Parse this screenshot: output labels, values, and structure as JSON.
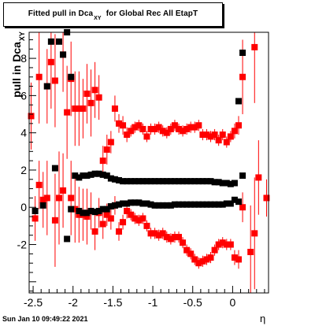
{
  "title": {
    "main": "Fitted pull in Dca",
    "sub": "XY",
    "rest": "for Global Rec All EtapT"
  },
  "ylabel": {
    "main": "pull in Dca",
    "sub": "XY"
  },
  "xlabel": "η",
  "timestamp": "Sun Jan 10 09:49:22 2021",
  "chart_data": {
    "type": "scatter",
    "xlim": [
      -2.55,
      0.45
    ],
    "ylim": [
      -4.6,
      9.4
    ],
    "xticks": [
      -2.5,
      -2,
      -1.5,
      -1,
      -0.5,
      0
    ],
    "yticks": [
      -2,
      0,
      2,
      4,
      6,
      8
    ],
    "grid": false,
    "series": [
      {
        "color": "#000000",
        "points": [
          {
            "x": -2.475,
            "y": -0.2
          },
          {
            "x": -2.375,
            "y": 0.1
          },
          {
            "x": -2.325,
            "y": 6.5
          },
          {
            "x": -2.275,
            "y": 8.9
          },
          {
            "x": -2.225,
            "y": 2.1
          },
          {
            "x": -2.175,
            "y": 8.9
          },
          {
            "x": -2.125,
            "y": 8.2
          },
          {
            "x": -2.075,
            "y": 9.4
          },
          {
            "x": -2.025,
            "y": 7.0
          },
          {
            "x": -2.075,
            "y": -1.7
          },
          {
            "x": -2.025,
            "y": -0.1
          },
          {
            "x": -1.975,
            "y": 1.7
          },
          {
            "x": -1.925,
            "y": 1.6
          },
          {
            "x": -1.875,
            "y": 1.7
          },
          {
            "x": -1.825,
            "y": 1.7
          },
          {
            "x": -1.775,
            "y": 1.75
          },
          {
            "x": -1.725,
            "y": 1.8
          },
          {
            "x": -1.675,
            "y": 1.8
          },
          {
            "x": -1.625,
            "y": 1.75
          },
          {
            "x": -1.575,
            "y": 1.7
          },
          {
            "x": -1.525,
            "y": 1.55
          },
          {
            "x": -1.475,
            "y": 1.5
          },
          {
            "x": -1.425,
            "y": 1.45
          },
          {
            "x": -1.375,
            "y": 1.4
          },
          {
            "x": -1.325,
            "y": 1.4
          },
          {
            "x": -1.275,
            "y": 1.4
          },
          {
            "x": -1.225,
            "y": 1.4
          },
          {
            "x": -1.175,
            "y": 1.4
          },
          {
            "x": -1.125,
            "y": 1.4
          },
          {
            "x": -1.075,
            "y": 1.4
          },
          {
            "x": -1.025,
            "y": 1.4
          },
          {
            "x": -0.975,
            "y": 1.4
          },
          {
            "x": -0.925,
            "y": 1.4
          },
          {
            "x": -0.875,
            "y": 1.4
          },
          {
            "x": -0.825,
            "y": 1.4
          },
          {
            "x": -0.775,
            "y": 1.4
          },
          {
            "x": -0.725,
            "y": 1.4
          },
          {
            "x": -0.675,
            "y": 1.4
          },
          {
            "x": -0.625,
            "y": 1.4
          },
          {
            "x": -0.575,
            "y": 1.4
          },
          {
            "x": -0.525,
            "y": 1.4
          },
          {
            "x": -0.475,
            "y": 1.4
          },
          {
            "x": -0.425,
            "y": 1.4
          },
          {
            "x": -0.375,
            "y": 1.4
          },
          {
            "x": -0.325,
            "y": 1.4
          },
          {
            "x": -0.275,
            "y": 1.4
          },
          {
            "x": -0.225,
            "y": 1.35
          },
          {
            "x": -0.175,
            "y": 1.35
          },
          {
            "x": -0.125,
            "y": 1.3
          },
          {
            "x": -0.075,
            "y": 1.3
          },
          {
            "x": -0.025,
            "y": 1.25
          },
          {
            "x": 0.025,
            "y": 1.3
          },
          {
            "x": -1.925,
            "y": -0.2
          },
          {
            "x": -1.875,
            "y": -0.3
          },
          {
            "x": -1.825,
            "y": -0.3
          },
          {
            "x": -1.775,
            "y": -0.2
          },
          {
            "x": -1.725,
            "y": -0.25
          },
          {
            "x": -1.675,
            "y": -0.2
          },
          {
            "x": -1.625,
            "y": -0.1
          },
          {
            "x": -1.575,
            "y": -0.1
          },
          {
            "x": -1.525,
            "y": 0.05
          },
          {
            "x": -1.475,
            "y": 0.1
          },
          {
            "x": -1.425,
            "y": 0.15
          },
          {
            "x": -1.375,
            "y": 0.2
          },
          {
            "x": -1.325,
            "y": 0.2
          },
          {
            "x": -1.275,
            "y": 0.25
          },
          {
            "x": -1.225,
            "y": 0.25
          },
          {
            "x": -1.175,
            "y": 0.25
          },
          {
            "x": -1.125,
            "y": 0.2
          },
          {
            "x": -1.075,
            "y": 0.2
          },
          {
            "x": -1.025,
            "y": 0.15
          },
          {
            "x": -0.975,
            "y": 0.1
          },
          {
            "x": -0.925,
            "y": 0.1
          },
          {
            "x": -0.875,
            "y": 0.1
          },
          {
            "x": -0.825,
            "y": 0.1
          },
          {
            "x": -0.775,
            "y": 0.1
          },
          {
            "x": -0.725,
            "y": 0.15
          },
          {
            "x": -0.675,
            "y": 0.15
          },
          {
            "x": -0.625,
            "y": 0.15
          },
          {
            "x": -0.575,
            "y": 0.15
          },
          {
            "x": -0.525,
            "y": 0.15
          },
          {
            "x": -0.475,
            "y": 0.15
          },
          {
            "x": -0.425,
            "y": 0.15
          },
          {
            "x": -0.375,
            "y": 0.15
          },
          {
            "x": -0.325,
            "y": 0.15
          },
          {
            "x": -0.275,
            "y": 0.15
          },
          {
            "x": -0.225,
            "y": 0.15
          },
          {
            "x": -0.175,
            "y": 0.15
          },
          {
            "x": -0.125,
            "y": 0.15
          },
          {
            "x": -0.075,
            "y": 0.2
          },
          {
            "x": -0.025,
            "y": 0.2
          },
          {
            "x": 0.025,
            "y": 0.4
          },
          {
            "x": 0.075,
            "y": 0.3
          },
          {
            "x": 0.075,
            "y": 5.7
          },
          {
            "x": 0.125,
            "y": 8.3
          },
          {
            "x": 0.125,
            "y": 1.7
          }
        ]
      },
      {
        "color": "#ff0000",
        "points": [
          {
            "x": -2.525,
            "y": 4.9,
            "err": 1.8
          },
          {
            "x": -2.475,
            "y": -0.6,
            "err": 1.2
          },
          {
            "x": -2.425,
            "y": 7.0,
            "err": 2.5
          },
          {
            "x": -2.425,
            "y": 1.2,
            "err": 1.3
          },
          {
            "x": -2.375,
            "y": 0.4,
            "err": 1.5
          },
          {
            "x": -2.325,
            "y": 6.5,
            "err": 2.0
          },
          {
            "x": -2.325,
            "y": 0.5,
            "err": 2.0
          },
          {
            "x": -2.275,
            "y": 7.8,
            "err": 2.5
          },
          {
            "x": -2.225,
            "y": 6.8,
            "err": 2.5
          },
          {
            "x": -2.225,
            "y": -0.7,
            "err": 2.5
          },
          {
            "x": -2.175,
            "y": 0.5,
            "err": 2.5
          },
          {
            "x": -2.125,
            "y": 8.2,
            "err": 2.0
          },
          {
            "x": -2.125,
            "y": 0.9,
            "err": 2.0
          },
          {
            "x": -2.075,
            "y": 5.1,
            "err": 2.5
          },
          {
            "x": -2.025,
            "y": 6.9,
            "err": 2.0
          },
          {
            "x": -2.025,
            "y": 0.5,
            "err": 2.0
          },
          {
            "x": -1.975,
            "y": 5.3,
            "err": 2.0
          },
          {
            "x": -1.975,
            "y": -0.1,
            "err": 1.8
          },
          {
            "x": -1.925,
            "y": 5.3,
            "err": 2.0
          },
          {
            "x": -1.925,
            "y": -0.4,
            "err": 1.5
          },
          {
            "x": -1.875,
            "y": 5.3,
            "err": 1.6
          },
          {
            "x": -1.875,
            "y": -0.4,
            "err": 1.4
          },
          {
            "x": -1.825,
            "y": 6.1,
            "err": 1.6
          },
          {
            "x": -1.825,
            "y": -0.5,
            "err": 1.5
          },
          {
            "x": -1.775,
            "y": 5.6,
            "err": 1.8
          },
          {
            "x": -1.775,
            "y": -0.2,
            "err": 1.0
          },
          {
            "x": -1.725,
            "y": 6.3,
            "err": 1.5
          },
          {
            "x": -1.725,
            "y": -1.3,
            "err": 1.0
          },
          {
            "x": -1.675,
            "y": 5.9,
            "err": 1.2
          },
          {
            "x": -1.675,
            "y": -0.3,
            "err": 0.8
          },
          {
            "x": -1.625,
            "y": 2.5,
            "err": 0.8
          },
          {
            "x": -1.625,
            "y": -0.9,
            "err": 0.8
          },
          {
            "x": -1.575,
            "y": 3.1,
            "err": 0.8
          },
          {
            "x": -1.575,
            "y": -0.4,
            "err": 0.6
          },
          {
            "x": -1.525,
            "y": 3.5,
            "err": 0.6
          },
          {
            "x": -1.525,
            "y": -0.6,
            "err": 0.6
          },
          {
            "x": -1.475,
            "y": 5.3,
            "err": 0.7
          },
          {
            "x": -1.475,
            "y": 0.1,
            "err": 0.5
          },
          {
            "x": -1.425,
            "y": 4.5,
            "err": 0.5
          },
          {
            "x": -1.425,
            "y": -1.3,
            "err": 0.5
          },
          {
            "x": -1.375,
            "y": 4.4,
            "err": 0.5
          },
          {
            "x": -1.375,
            "y": -0.8,
            "err": 0.4
          },
          {
            "x": -1.325,
            "y": 3.9,
            "err": 0.4
          },
          {
            "x": -1.325,
            "y": -0.2,
            "err": 0.4
          },
          {
            "x": -1.275,
            "y": 4.1,
            "err": 0.3
          },
          {
            "x": -1.275,
            "y": -0.4,
            "err": 0.3
          },
          {
            "x": -1.225,
            "y": 4.3,
            "err": 0.3
          },
          {
            "x": -1.225,
            "y": -0.6,
            "err": 0.3
          },
          {
            "x": -1.175,
            "y": 4.4,
            "err": 0.3
          },
          {
            "x": -1.175,
            "y": -0.7,
            "err": 0.3
          },
          {
            "x": -1.125,
            "y": 4.2,
            "err": 0.3
          },
          {
            "x": -1.125,
            "y": -0.6,
            "err": 0.3
          },
          {
            "x": -1.075,
            "y": 3.8,
            "err": 0.3
          },
          {
            "x": -1.075,
            "y": -1.0,
            "err": 0.3
          },
          {
            "x": -1.025,
            "y": 4.2,
            "err": 0.3
          },
          {
            "x": -1.025,
            "y": -1.4,
            "err": 0.3
          },
          {
            "x": -0.975,
            "y": 4.2,
            "err": 0.3
          },
          {
            "x": -0.975,
            "y": -1.4,
            "err": 0.3
          },
          {
            "x": -0.925,
            "y": 4.3,
            "err": 0.3
          },
          {
            "x": -0.925,
            "y": -1.5,
            "err": 0.3
          },
          {
            "x": -0.875,
            "y": 4.1,
            "err": 0.3
          },
          {
            "x": -0.875,
            "y": -1.4,
            "err": 0.3
          },
          {
            "x": -0.825,
            "y": 4.0,
            "err": 0.3
          },
          {
            "x": -0.825,
            "y": -1.6,
            "err": 0.3
          },
          {
            "x": -0.775,
            "y": 4.2,
            "err": 0.3
          },
          {
            "x": -0.775,
            "y": -1.7,
            "err": 0.3
          },
          {
            "x": -0.725,
            "y": 4.4,
            "err": 0.3
          },
          {
            "x": -0.725,
            "y": -1.6,
            "err": 0.3
          },
          {
            "x": -0.675,
            "y": 4.2,
            "err": 0.3
          },
          {
            "x": -0.675,
            "y": -1.6,
            "err": 0.3
          },
          {
            "x": -0.625,
            "y": 4.1,
            "err": 0.3
          },
          {
            "x": -0.625,
            "y": -1.9,
            "err": 0.3
          },
          {
            "x": -0.575,
            "y": 4.2,
            "err": 0.3
          },
          {
            "x": -0.575,
            "y": -2.3,
            "err": 0.3
          },
          {
            "x": -0.525,
            "y": 4.3,
            "err": 0.3
          },
          {
            "x": -0.525,
            "y": -2.5,
            "err": 0.3
          },
          {
            "x": -0.475,
            "y": 4.3,
            "err": 0.3
          },
          {
            "x": -0.475,
            "y": -2.8,
            "err": 0.3
          },
          {
            "x": -0.425,
            "y": 4.4,
            "err": 0.3
          },
          {
            "x": -0.425,
            "y": -3.0,
            "err": 0.3
          },
          {
            "x": -0.375,
            "y": 3.9,
            "err": 0.3
          },
          {
            "x": -0.375,
            "y": -2.9,
            "err": 0.3
          },
          {
            "x": -0.325,
            "y": 3.9,
            "err": 0.3
          },
          {
            "x": -0.325,
            "y": -2.8,
            "err": 0.3
          },
          {
            "x": -0.275,
            "y": 3.8,
            "err": 0.3
          },
          {
            "x": -0.275,
            "y": -2.7,
            "err": 0.3
          },
          {
            "x": -0.225,
            "y": 3.9,
            "err": 0.3
          },
          {
            "x": -0.225,
            "y": -2.3,
            "err": 0.3
          },
          {
            "x": -0.175,
            "y": 3.6,
            "err": 0.3
          },
          {
            "x": -0.175,
            "y": -2.0,
            "err": 0.3
          },
          {
            "x": -0.125,
            "y": 3.9,
            "err": 0.3
          },
          {
            "x": -0.125,
            "y": -1.9,
            "err": 0.3
          },
          {
            "x": -0.075,
            "y": 3.5,
            "err": 0.3
          },
          {
            "x": -0.075,
            "y": -2.0,
            "err": 0.3
          },
          {
            "x": -0.025,
            "y": 3.8,
            "err": 0.3
          },
          {
            "x": -0.025,
            "y": -2.0,
            "err": 0.3
          },
          {
            "x": 0.025,
            "y": 4.1,
            "err": 0.4
          },
          {
            "x": 0.025,
            "y": -2.7,
            "err": 0.4
          },
          {
            "x": 0.075,
            "y": 4.4,
            "err": 0.5
          },
          {
            "x": 0.075,
            "y": -2.8,
            "err": 0.5
          },
          {
            "x": 0.125,
            "y": 7.0,
            "err": 2.0
          },
          {
            "x": 0.125,
            "y": 0.0,
            "err": 0.8
          },
          {
            "x": 0.225,
            "y": -2.4,
            "err": 2.5
          },
          {
            "x": 0.275,
            "y": 8.6,
            "err": 3.0
          },
          {
            "x": 0.275,
            "y": -1.4,
            "err": 3.0
          },
          {
            "x": 0.325,
            "y": 1.6,
            "err": 2.0
          },
          {
            "x": 0.425,
            "y": 0.5,
            "err": 1.0
          }
        ]
      }
    ]
  }
}
